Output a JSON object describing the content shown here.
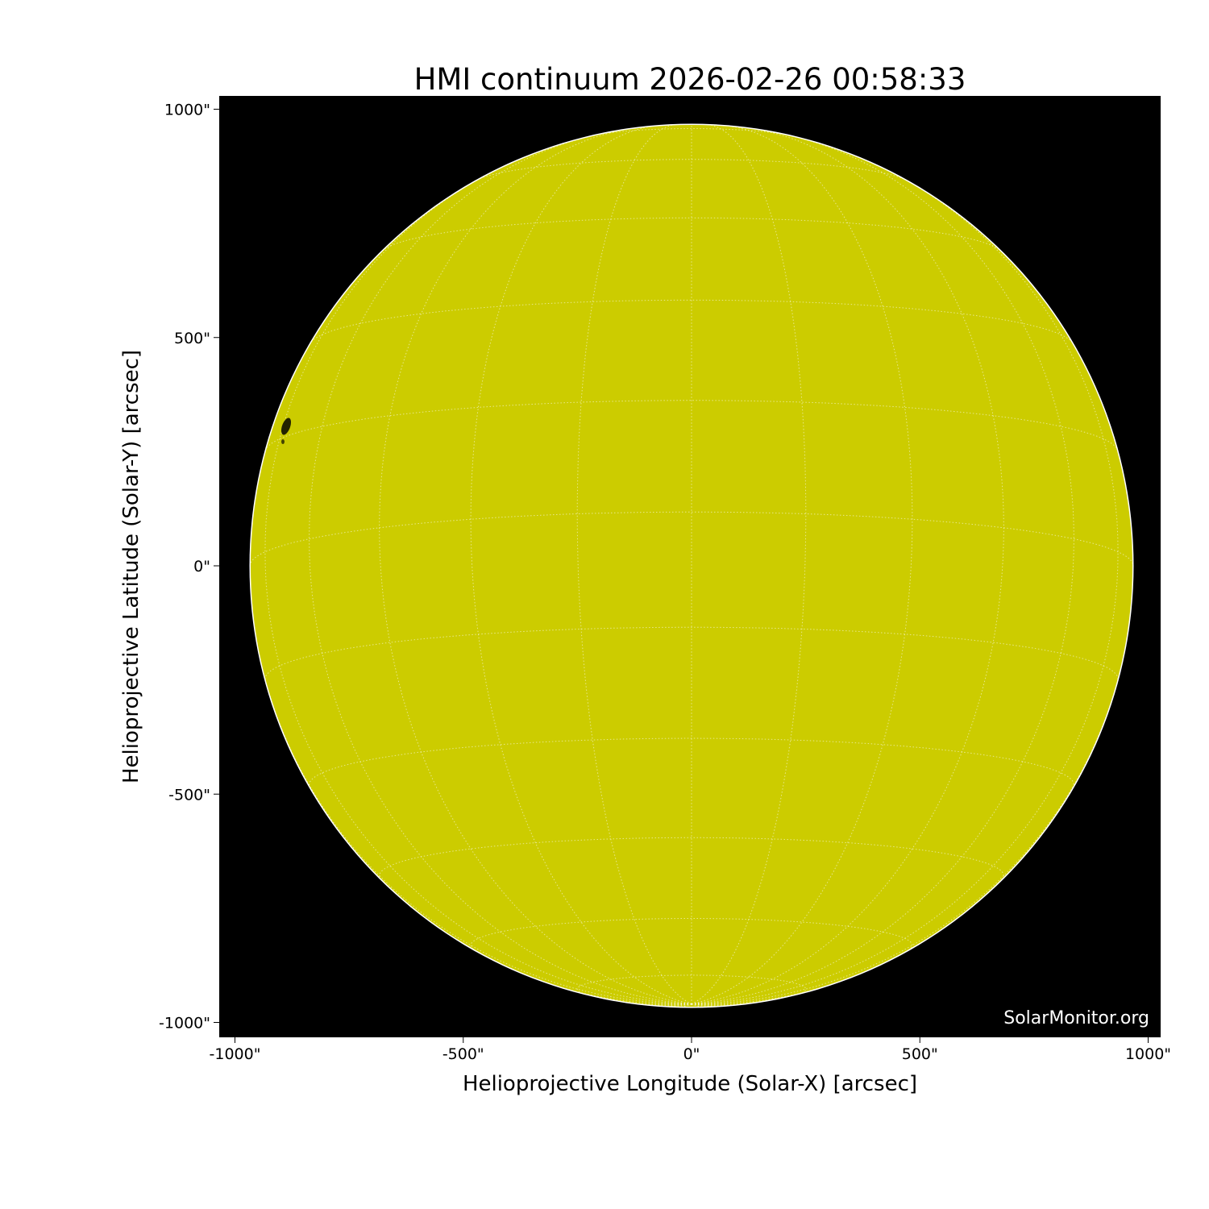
{
  "chart_data": {
    "type": "heatmap",
    "title": "HMI continuum 2026-02-26 00:58:33",
    "xlabel": "Helioprojective Longitude (Solar-X) [arcsec]",
    "ylabel": "Helioprojective Latitude (Solar-Y) [arcsec]",
    "xlim": [
      -1030,
      1030
    ],
    "ylim": [
      -1030,
      1030
    ],
    "x_ticks": [
      "-1000\"",
      "-500\"",
      "0\"",
      "500\"",
      "1000\""
    ],
    "x_tick_values": [
      -1000,
      -500,
      0,
      500,
      1000
    ],
    "y_ticks": [
      "1000\"",
      "500\"",
      "0\"",
      "-500\"",
      "-1000\""
    ],
    "y_tick_values": [
      1000,
      500,
      0,
      -500,
      -1000
    ],
    "solar_radius_arcsec": 967,
    "grid_spacing_deg": 15,
    "colors": {
      "disk": "#cccc00",
      "background": "#000000",
      "grid": "#ffffff",
      "sunspot": "#1a1a00"
    },
    "watermark": "SolarMonitor.org"
  }
}
